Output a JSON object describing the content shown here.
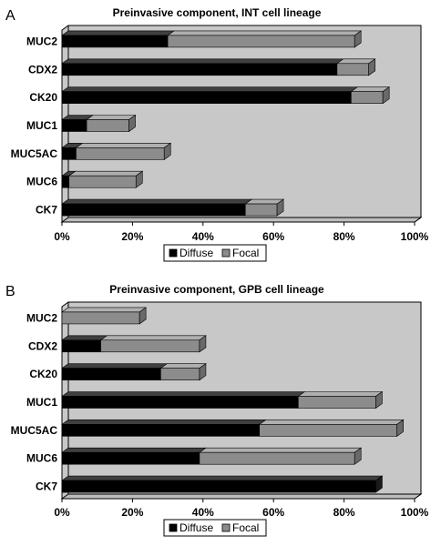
{
  "colors": {
    "diffuse": "#000000",
    "focal": "#8c8c8c",
    "plot_bg": "#c8c8c8",
    "wall": "#bdbdbd"
  },
  "chart_data": [
    {
      "panel": "A",
      "type": "bar",
      "orientation": "horizontal",
      "stacked": true,
      "title": "Preinvasive component, INT cell lineage",
      "categories": [
        "MUC2",
        "CDX2",
        "CK20",
        "MUC1",
        "MUC5AC",
        "MUC6",
        "CK7"
      ],
      "series": [
        {
          "name": "Diffuse",
          "values": [
            30,
            78,
            82,
            7,
            4,
            2,
            52
          ]
        },
        {
          "name": "Focal",
          "values": [
            53,
            9,
            9,
            12,
            25,
            19,
            9
          ]
        }
      ],
      "xticks": [
        "0%",
        "20%",
        "40%",
        "60%",
        "80%",
        "100%"
      ],
      "xlim": [
        0,
        100
      ],
      "grid": false,
      "legend": "bottom"
    },
    {
      "panel": "B",
      "type": "bar",
      "orientation": "horizontal",
      "stacked": true,
      "title": "Preinvasive component, GPB cell lineage",
      "categories": [
        "MUC2",
        "CDX2",
        "CK20",
        "MUC1",
        "MUC5AC",
        "MUC6",
        "CK7"
      ],
      "series": [
        {
          "name": "Diffuse",
          "values": [
            0,
            11,
            28,
            67,
            56,
            39,
            89
          ]
        },
        {
          "name": "Focal",
          "values": [
            22,
            28,
            11,
            22,
            39,
            44,
            0
          ]
        }
      ],
      "xticks": [
        "0%",
        "20%",
        "40%",
        "60%",
        "80%",
        "100%"
      ],
      "xlim": [
        0,
        100
      ],
      "grid": false,
      "legend": "bottom"
    }
  ]
}
